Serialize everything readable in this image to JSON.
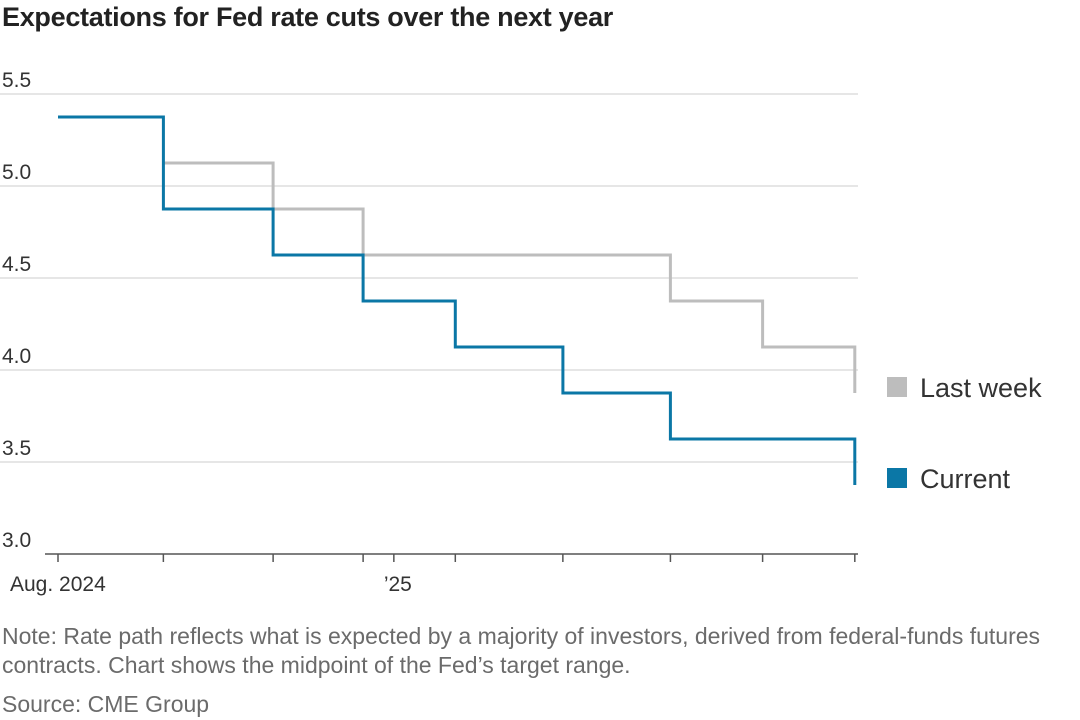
{
  "title": "Expectations for Fed rate cuts over the next year",
  "note": "Note: Rate path reflects what is expected by a majority of investors, derived from federal-funds futures contracts. Chart shows the midpoint of the Fed’s target range.",
  "source": "Source: CME Group",
  "chart_data": {
    "type": "line",
    "step": true,
    "title": "Expectations for Fed rate cuts over the next year",
    "xlabel": "",
    "ylabel": "",
    "ylim": [
      3.0,
      5.5
    ],
    "yticks": [
      3.0,
      3.5,
      4.0,
      4.5,
      5.0,
      5.5
    ],
    "ytick_labels": [
      "3.0",
      "3.5",
      "4.0",
      "4.5",
      "5.0",
      "5.5"
    ],
    "xlim": [
      "2024-08-01",
      "2025-07-31"
    ],
    "xtick_dates": [
      "2024-08-01",
      "2024-09-18",
      "2024-11-07",
      "2024-12-18",
      "2025-01-01",
      "2025-01-29",
      "2025-03-19",
      "2025-05-07",
      "2025-06-18",
      "2025-07-30"
    ],
    "xtick_labels": [
      {
        "date": "2024-08-01",
        "label": "Aug. 2024"
      },
      {
        "date": "2025-01-01",
        "label": "’25"
      }
    ],
    "grid": true,
    "legend": "right",
    "series": [
      {
        "name": "Last week",
        "color": "#bdbdbd",
        "points": [
          [
            "2024-09-18",
            5.125
          ],
          [
            "2024-11-07",
            5.125
          ],
          [
            "2024-11-07",
            4.875
          ],
          [
            "2024-12-18",
            4.875
          ],
          [
            "2024-12-18",
            4.625
          ],
          [
            "2025-05-07",
            4.625
          ],
          [
            "2025-05-07",
            4.375
          ],
          [
            "2025-06-18",
            4.375
          ],
          [
            "2025-06-18",
            4.125
          ],
          [
            "2025-07-30",
            4.125
          ],
          [
            "2025-07-30",
            3.875
          ]
        ]
      },
      {
        "name": "Current",
        "color": "#0b77a6",
        "points": [
          [
            "2024-08-01",
            5.375
          ],
          [
            "2024-09-18",
            5.375
          ],
          [
            "2024-09-18",
            4.875
          ],
          [
            "2024-11-07",
            4.875
          ],
          [
            "2024-11-07",
            4.625
          ],
          [
            "2024-12-18",
            4.625
          ],
          [
            "2024-12-18",
            4.375
          ],
          [
            "2025-01-29",
            4.375
          ],
          [
            "2025-01-29",
            4.125
          ],
          [
            "2025-03-19",
            4.125
          ],
          [
            "2025-03-19",
            3.875
          ],
          [
            "2025-05-07",
            3.875
          ],
          [
            "2025-05-07",
            3.625
          ],
          [
            "2025-06-18",
            3.625
          ],
          [
            "2025-06-18",
            3.625
          ],
          [
            "2025-07-30",
            3.625
          ],
          [
            "2025-07-30",
            3.375
          ]
        ]
      }
    ]
  }
}
